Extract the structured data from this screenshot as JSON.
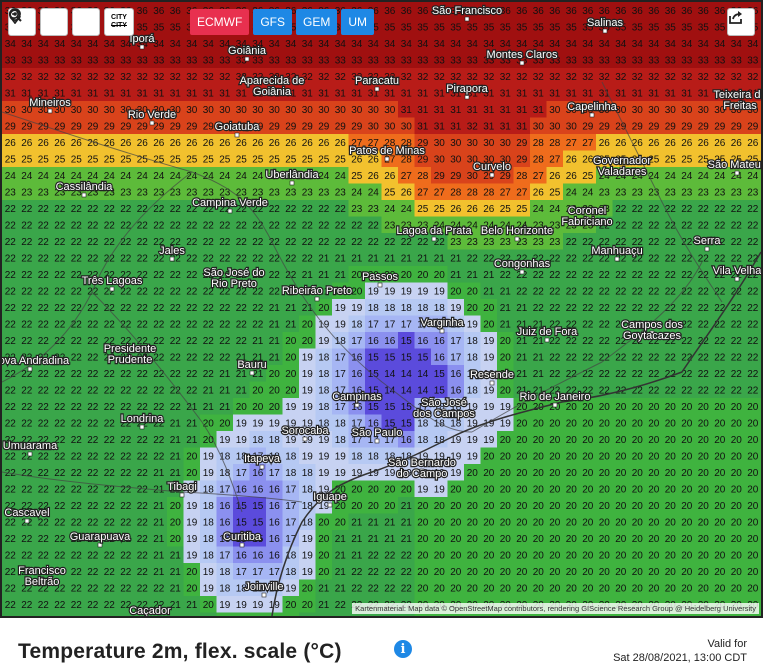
{
  "toolbar": {
    "refresh_icon": "refresh-icon",
    "pin_icon": "location-pin-icon",
    "zoom_icon": "zoom-out-icon",
    "city_label_top": "CITY",
    "city_label_bottom": "CITY",
    "share_icon": "share-icon"
  },
  "models": [
    {
      "label": "ECMWF",
      "active": true
    },
    {
      "label": "GFS",
      "active": false
    },
    {
      "label": "GEM",
      "active": false
    },
    {
      "label": "UM",
      "active": false
    }
  ],
  "map": {
    "attribution": "Kartenmaterial: Map data © OpenStreetMap contributors, rendering GIScience Research Group @ Heidelberg University",
    "cities": [
      {
        "name": "São Francisco"
      },
      {
        "name": "Salinas"
      },
      {
        "name": "Iporá"
      },
      {
        "name": "Goiânia"
      },
      {
        "name": "Montes Claros"
      },
      {
        "name": "Aparecida de Goiânia"
      },
      {
        "name": "Paracatu"
      },
      {
        "name": "Pirapora"
      },
      {
        "name": "Teixeira de Freitas"
      },
      {
        "name": "Mineiros"
      },
      {
        "name": "Rio Verde"
      },
      {
        "name": "Capelinha"
      },
      {
        "name": "Goiatuba"
      },
      {
        "name": "Patos de Minas"
      },
      {
        "name": "Governador Valadares"
      },
      {
        "name": "São Mateus"
      },
      {
        "name": "Uberlândia"
      },
      {
        "name": "Curvelo"
      },
      {
        "name": "Cassilândia"
      },
      {
        "name": "Campina Verde"
      },
      {
        "name": "Coronel Fabriciano"
      },
      {
        "name": "Lagoa da Prata"
      },
      {
        "name": "Belo Horizonte"
      },
      {
        "name": "Serra"
      },
      {
        "name": "Jales"
      },
      {
        "name": "Manhuaçu"
      },
      {
        "name": "Vila Velha"
      },
      {
        "name": "São José do Rio Preto"
      },
      {
        "name": "Passos"
      },
      {
        "name": "Congonhas"
      },
      {
        "name": "Três Lagoas"
      },
      {
        "name": "Ribeirão Preto"
      },
      {
        "name": "Varginha"
      },
      {
        "name": "Juiz de Fora"
      },
      {
        "name": "Campos dos Goytacazes"
      },
      {
        "name": "Presidente Prudente"
      },
      {
        "name": "Nova Andradina"
      },
      {
        "name": "Bauru"
      },
      {
        "name": "Resende"
      },
      {
        "name": "Campinas"
      },
      {
        "name": "São José dos Campos"
      },
      {
        "name": "Rio de Janeiro"
      },
      {
        "name": "Londrina"
      },
      {
        "name": "Sorocaba"
      },
      {
        "name": "São Paulo"
      },
      {
        "name": "Umuarama"
      },
      {
        "name": "Itapeva"
      },
      {
        "name": "São Bernardo do Campo"
      },
      {
        "name": "Tibagi"
      },
      {
        "name": "Cascavel"
      },
      {
        "name": "Iguape"
      },
      {
        "name": "Guarapuava"
      },
      {
        "name": "Curitiba"
      },
      {
        "name": "Francisco Beltrão"
      },
      {
        "name": "Joinville"
      },
      {
        "name": "Caçador"
      }
    ]
  },
  "footer": {
    "title": "Temperature 2m, flex. scale (°C)",
    "info_icon": "info-icon",
    "valid_label": "Valid for",
    "valid_time": "Sat 28/08/2021, 13:00 CDT"
  },
  "colors": {
    "hot": "#b71c1c",
    "warm": "#e65100",
    "mild": "#4caf50",
    "cool": "#7c83f0",
    "cold": "#4b2fc9",
    "active_model": "#e8304f",
    "inactive_model": "#1e88e5"
  }
}
